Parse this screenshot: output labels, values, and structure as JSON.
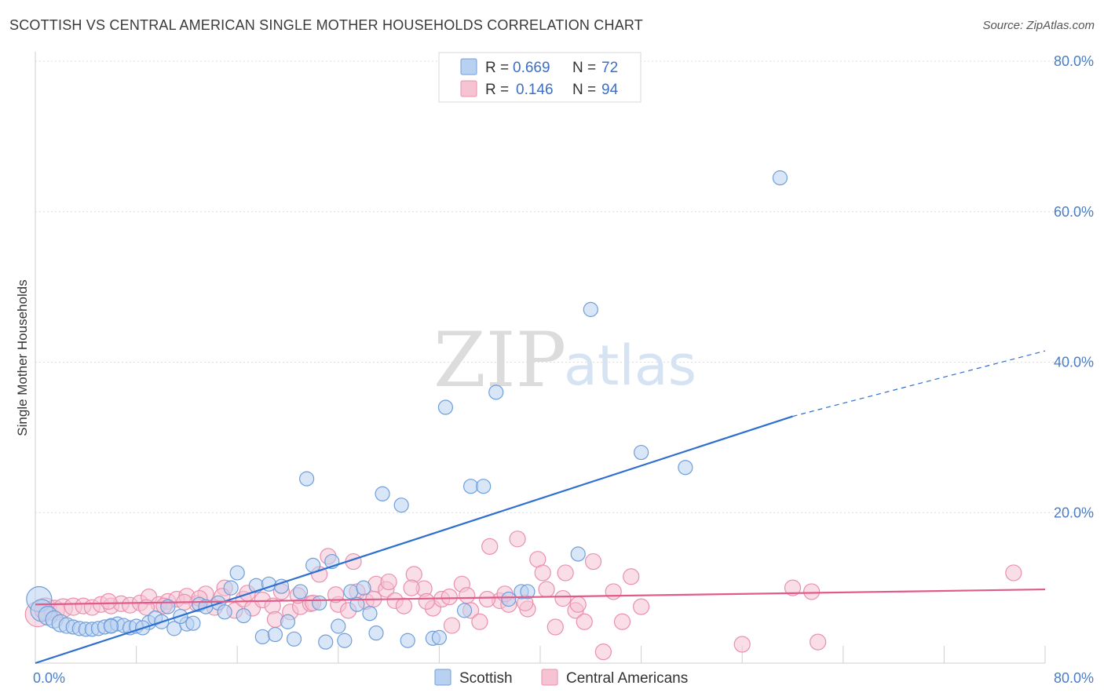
{
  "title": "SCOTTISH VS CENTRAL AMERICAN SINGLE MOTHER HOUSEHOLDS CORRELATION CHART",
  "source": "Source: ZipAtlas.com",
  "watermark": {
    "zip": "ZIP",
    "atlas": "atlas"
  },
  "colors": {
    "scottish_fill": "#b9d1f1",
    "scottish_stroke": "#6f9edb",
    "scottish_line": "#2f6fcf",
    "central_fill": "#f6c3d3",
    "central_stroke": "#ea8fae",
    "central_line": "#e05a8a",
    "grid": "#dcdcdc",
    "tick": "#4a7cc7"
  },
  "legend": {
    "rows": [
      {
        "r_label": "R =",
        "r_value": "0.669",
        "n_label": "N =",
        "n_value": "72"
      },
      {
        "r_label": "R =",
        "r_value": "0.146",
        "n_label": "N =",
        "n_value": "94"
      }
    ]
  },
  "chart_data": {
    "type": "scatter",
    "title": "SCOTTISH VS CENTRAL AMERICAN SINGLE MOTHER HOUSEHOLDS CORRELATION CHART",
    "xlabel": "",
    "ylabel": "Single Mother Households",
    "xlim": [
      0,
      80
    ],
    "ylim": [
      0,
      80
    ],
    "x_tick_labels": [
      "0.0%",
      "80.0%"
    ],
    "y_tick_labels": [
      "80.0%",
      "60.0%",
      "40.0%",
      "20.0%"
    ],
    "y_ticks": [
      80,
      60,
      40,
      20
    ],
    "grid": true,
    "legend_placement": "bottom",
    "series": [
      {
        "name": "Scottish",
        "trend": {
          "x": [
            0,
            60
          ],
          "y": [
            0,
            32.8
          ],
          "dashed_to": [
            80,
            41.5
          ]
        },
        "points": [
          [
            0.3,
            8.5,
            16
          ],
          [
            0.5,
            7.0,
            14
          ],
          [
            1.0,
            6.3,
            12
          ],
          [
            1.5,
            5.8,
            11
          ],
          [
            2.0,
            5.3,
            11
          ],
          [
            2.5,
            5.0,
            10
          ],
          [
            3.0,
            4.8,
            9
          ],
          [
            3.5,
            4.6,
            9
          ],
          [
            4.0,
            4.5,
            9
          ],
          [
            4.5,
            4.5,
            9
          ],
          [
            5.0,
            4.6,
            9
          ],
          [
            5.5,
            4.8,
            9
          ],
          [
            6.0,
            5.0,
            9
          ],
          [
            6.5,
            5.2,
            9
          ],
          [
            7.0,
            5.0,
            9
          ],
          [
            7.5,
            4.7,
            9
          ],
          [
            8.0,
            4.9,
            9
          ],
          [
            9.0,
            5.4,
            9
          ],
          [
            9.5,
            6.0,
            9
          ],
          [
            10.0,
            5.5,
            9
          ],
          [
            10.5,
            7.5,
            9
          ],
          [
            11.0,
            4.6,
            9
          ],
          [
            12.0,
            5.2,
            9
          ],
          [
            13.0,
            7.8,
            9
          ],
          [
            13.5,
            7.5,
            9
          ],
          [
            14.5,
            8.0,
            9
          ],
          [
            15.5,
            10.0,
            9
          ],
          [
            16.0,
            12.0,
            9
          ],
          [
            16.5,
            6.3,
            9
          ],
          [
            17.5,
            10.3,
            9
          ],
          [
            18.0,
            3.5,
            9
          ],
          [
            18.5,
            10.5,
            9
          ],
          [
            19.0,
            3.8,
            9
          ],
          [
            19.5,
            10.2,
            9
          ],
          [
            20.0,
            5.5,
            9
          ],
          [
            20.5,
            3.2,
            9
          ],
          [
            21.0,
            9.5,
            9
          ],
          [
            21.5,
            24.5,
            9
          ],
          [
            22.0,
            13.0,
            9
          ],
          [
            22.5,
            8.0,
            9
          ],
          [
            23.0,
            2.8,
            9
          ],
          [
            23.5,
            13.5,
            9
          ],
          [
            24.0,
            4.9,
            9
          ],
          [
            24.5,
            3.0,
            9
          ],
          [
            25.0,
            9.5,
            9
          ],
          [
            25.5,
            7.8,
            9
          ],
          [
            26.0,
            10.0,
            9
          ],
          [
            26.5,
            6.6,
            9
          ],
          [
            27.0,
            4.0,
            9
          ],
          [
            27.5,
            22.5,
            9
          ],
          [
            29.0,
            21.0,
            9
          ],
          [
            29.5,
            3.0,
            9
          ],
          [
            31.5,
            3.3,
            9
          ],
          [
            32.0,
            3.4,
            9
          ],
          [
            32.5,
            34.0,
            9
          ],
          [
            34.0,
            7.0,
            9
          ],
          [
            34.5,
            23.5,
            9
          ],
          [
            35.5,
            23.5,
            9
          ],
          [
            36.5,
            36.0,
            9
          ],
          [
            37.5,
            8.5,
            9
          ],
          [
            38.5,
            9.5,
            9
          ],
          [
            39.0,
            9.5,
            9
          ],
          [
            43.0,
            14.5,
            9
          ],
          [
            44.0,
            47.0,
            9
          ],
          [
            48.0,
            28.0,
            9
          ],
          [
            51.5,
            26.0,
            9
          ],
          [
            59.0,
            64.5,
            9
          ],
          [
            12.5,
            5.3,
            9
          ],
          [
            15.0,
            6.8,
            9
          ],
          [
            11.5,
            6.2,
            9
          ],
          [
            8.5,
            4.7,
            9
          ],
          [
            6.0,
            4.9,
            9
          ]
        ]
      },
      {
        "name": "Central Americans",
        "trend": {
          "x": [
            0,
            80
          ],
          "y": [
            7.8,
            9.8
          ]
        },
        "points": [
          [
            0.2,
            6.5,
            16
          ],
          [
            0.8,
            7.2,
            14
          ],
          [
            1.5,
            7.0,
            13
          ],
          [
            2.2,
            7.3,
            12
          ],
          [
            3.0,
            7.5,
            11
          ],
          [
            3.8,
            7.6,
            10
          ],
          [
            4.5,
            7.4,
            10
          ],
          [
            5.2,
            7.8,
            10
          ],
          [
            6.0,
            7.6,
            10
          ],
          [
            6.8,
            7.9,
            10
          ],
          [
            7.5,
            7.7,
            10
          ],
          [
            8.3,
            8.0,
            10
          ],
          [
            9.0,
            8.8,
            10
          ],
          [
            9.8,
            7.8,
            10
          ],
          [
            10.5,
            8.2,
            10
          ],
          [
            11.2,
            8.5,
            10
          ],
          [
            12.0,
            8.9,
            10
          ],
          [
            12.8,
            7.9,
            10
          ],
          [
            13.5,
            9.2,
            10
          ],
          [
            14.2,
            7.4,
            10
          ],
          [
            15.0,
            10.0,
            10
          ],
          [
            15.8,
            7.0,
            10
          ],
          [
            16.5,
            8.5,
            10
          ],
          [
            17.2,
            7.3,
            10
          ],
          [
            18.0,
            8.4,
            10
          ],
          [
            18.8,
            7.6,
            10
          ],
          [
            19.5,
            9.5,
            10
          ],
          [
            20.2,
            6.8,
            10
          ],
          [
            21.0,
            7.5,
            10
          ],
          [
            21.8,
            7.9,
            10
          ],
          [
            22.5,
            11.8,
            10
          ],
          [
            23.2,
            14.2,
            10
          ],
          [
            24.0,
            7.8,
            10
          ],
          [
            24.8,
            7.0,
            10
          ],
          [
            25.5,
            9.5,
            10
          ],
          [
            26.2,
            8.2,
            10
          ],
          [
            27.0,
            10.5,
            10
          ],
          [
            27.8,
            9.8,
            10
          ],
          [
            28.5,
            8.3,
            10
          ],
          [
            29.2,
            7.6,
            10
          ],
          [
            30.0,
            11.8,
            10
          ],
          [
            30.8,
            9.9,
            10
          ],
          [
            31.5,
            7.3,
            10
          ],
          [
            32.2,
            8.5,
            10
          ],
          [
            33.0,
            5.0,
            10
          ],
          [
            33.8,
            10.5,
            10
          ],
          [
            34.5,
            7.0,
            10
          ],
          [
            35.2,
            5.5,
            10
          ],
          [
            36.0,
            15.5,
            10
          ],
          [
            36.8,
            8.3,
            10
          ],
          [
            37.5,
            7.8,
            10
          ],
          [
            38.2,
            16.5,
            10
          ],
          [
            39.0,
            7.2,
            10
          ],
          [
            39.8,
            13.8,
            10
          ],
          [
            40.5,
            9.8,
            10
          ],
          [
            41.2,
            4.8,
            10
          ],
          [
            42.0,
            12.0,
            10
          ],
          [
            42.8,
            7.0,
            10
          ],
          [
            43.5,
            5.5,
            10
          ],
          [
            44.2,
            13.5,
            10
          ],
          [
            45.0,
            1.5,
            10
          ],
          [
            45.8,
            9.5,
            10
          ],
          [
            46.5,
            5.5,
            10
          ],
          [
            47.2,
            11.5,
            10
          ],
          [
            48.0,
            7.5,
            10
          ],
          [
            56.0,
            2.5,
            10
          ],
          [
            60.0,
            10.0,
            10
          ],
          [
            61.5,
            9.5,
            10
          ],
          [
            62.0,
            2.8,
            10
          ],
          [
            77.5,
            12.0,
            10
          ],
          [
            13.0,
            8.6,
            10
          ],
          [
            14.8,
            8.9,
            10
          ],
          [
            16.8,
            9.3,
            10
          ],
          [
            19.0,
            5.8,
            10
          ],
          [
            20.8,
            9.0,
            10
          ],
          [
            22.0,
            8.0,
            10
          ],
          [
            23.8,
            9.1,
            10
          ],
          [
            25.2,
            13.5,
            10
          ],
          [
            26.8,
            8.5,
            10
          ],
          [
            28.0,
            10.8,
            10
          ],
          [
            29.8,
            10.0,
            10
          ],
          [
            31.0,
            8.2,
            10
          ],
          [
            32.8,
            8.8,
            10
          ],
          [
            34.2,
            9.0,
            10
          ],
          [
            35.8,
            8.5,
            10
          ],
          [
            37.2,
            9.2,
            10
          ],
          [
            38.8,
            8.0,
            10
          ],
          [
            40.2,
            12.0,
            10
          ],
          [
            41.8,
            8.6,
            10
          ],
          [
            43.0,
            7.8,
            10
          ],
          [
            10.2,
            7.6,
            10
          ],
          [
            11.8,
            8.1,
            10
          ],
          [
            8.8,
            7.4,
            10
          ],
          [
            5.8,
            8.2,
            10
          ]
        ]
      }
    ]
  }
}
